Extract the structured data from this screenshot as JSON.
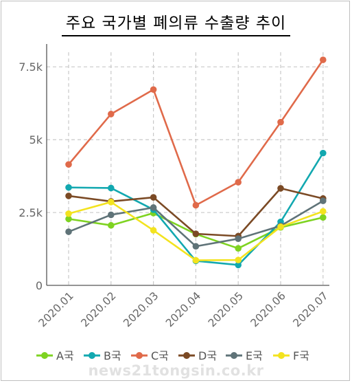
{
  "chart_data": {
    "type": "line",
    "title": "주요 국가별 폐의류 수출량 추이",
    "categories": [
      "2020.01",
      "2020.02",
      "2020.03",
      "2020.04",
      "2020.05",
      "2020.06",
      "2020.07"
    ],
    "ylim": [
      0,
      8000
    ],
    "yticks": [
      {
        "value": 0,
        "label": "0"
      },
      {
        "value": 2500,
        "label": "2.5k"
      },
      {
        "value": 5000,
        "label": "5k"
      },
      {
        "value": 7500,
        "label": "7.5k"
      }
    ],
    "grid": true,
    "legend_position": "bottom",
    "series": [
      {
        "name": "A국",
        "color": "#7ed321",
        "values": [
          2280,
          2060,
          2480,
          1760,
          1270,
          1990,
          2330
        ]
      },
      {
        "name": "B국",
        "color": "#12a8b0",
        "values": [
          3360,
          3340,
          2600,
          840,
          700,
          2180,
          4540
        ]
      },
      {
        "name": "C국",
        "color": "#e06a4a",
        "values": [
          4150,
          5880,
          6720,
          2750,
          3540,
          5600,
          7740
        ]
      },
      {
        "name": "D국",
        "color": "#7b4a25",
        "values": [
          3070,
          2880,
          3020,
          1770,
          1690,
          3330,
          2980
        ]
      },
      {
        "name": "E국",
        "color": "#5f7378",
        "values": [
          1840,
          2420,
          2670,
          1340,
          1600,
          2040,
          2900
        ]
      },
      {
        "name": "F국",
        "color": "#f3e31f",
        "values": [
          2460,
          2860,
          1890,
          860,
          870,
          2010,
          2540
        ]
      }
    ]
  },
  "watermark": "news21tongsin.co.kr"
}
